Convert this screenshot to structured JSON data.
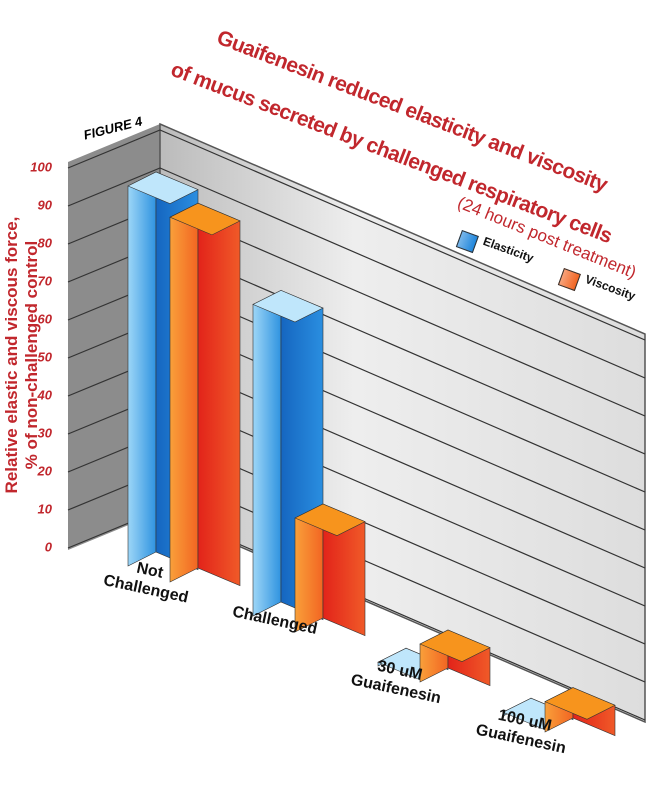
{
  "chart_data": {
    "type": "bar3d",
    "title": [
      "Guaifenesin reduced elasticity and viscosity",
      "of mucus secreted by challenged respiratory cells"
    ],
    "subtitle": "(24 hours post treatment)",
    "annotation": "FIGURE 4",
    "ylabel": [
      "Relative elastic and viscous force,",
      "% of non-challenged control"
    ],
    "categories": [
      "Not Challenged",
      "Challenged",
      "30 uM Guaifenesin",
      "100 uM Guaifenesin"
    ],
    "series": [
      {
        "name": "Elasticity",
        "color": "#1f86dc",
        "values": [
          100,
          82,
          1,
          1
        ]
      },
      {
        "name": "Viscosity",
        "color": "#f26522",
        "values": [
          96,
          30,
          10,
          8
        ]
      }
    ],
    "ylim": [
      0,
      100
    ],
    "yticks": [
      0,
      10,
      20,
      30,
      40,
      50,
      60,
      70,
      80,
      90,
      100
    ],
    "grid": true
  }
}
